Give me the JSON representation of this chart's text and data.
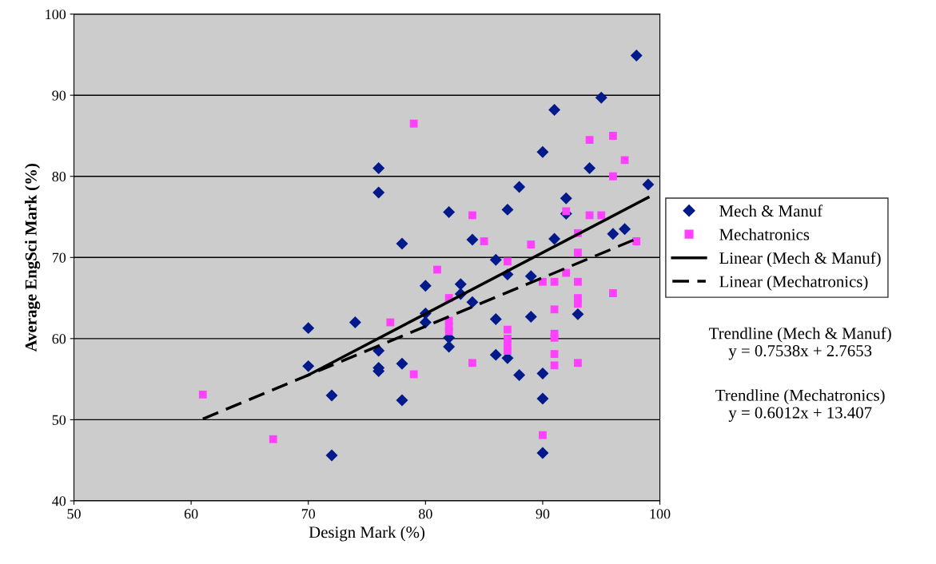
{
  "chart_data": {
    "type": "scatter",
    "xlabel": "Design Mark (%)",
    "ylabel": "Average EngSci Mark (%)",
    "xlim": [
      50,
      100
    ],
    "xticks": [
      50,
      60,
      70,
      80,
      90,
      100
    ],
    "ylim": [
      40,
      100
    ],
    "yticks": [
      40,
      50,
      60,
      70,
      80,
      90,
      100
    ],
    "grid": "y",
    "legend": "right",
    "series": [
      {
        "name": "Mech & Manuf",
        "marker": "diamond",
        "color": "#001a8c",
        "x": [
          76,
          76,
          78,
          70,
          74,
          76,
          70,
          76,
          76,
          78,
          72,
          78,
          72,
          98,
          95,
          91,
          90,
          94,
          99,
          88,
          92,
          82,
          87,
          92,
          96,
          97,
          84,
          91,
          86,
          87,
          89,
          80,
          83,
          83,
          84,
          80,
          80,
          82,
          82,
          86,
          89,
          93,
          86,
          87,
          88,
          90,
          90,
          90
        ],
        "values": [
          81,
          78,
          71.7,
          61.3,
          62,
          58.5,
          56.6,
          56.4,
          56,
          56.9,
          53,
          52.4,
          45.6,
          94.9,
          89.7,
          88.2,
          83,
          81,
          79,
          78.7,
          77.3,
          75.6,
          75.9,
          75.4,
          72.9,
          73.5,
          72.2,
          72.3,
          69.7,
          67.9,
          67.7,
          66.5,
          66.7,
          65.5,
          64.5,
          63.1,
          62,
          60.1,
          59,
          62.4,
          62.7,
          63,
          58,
          57.6,
          55.5,
          55.7,
          52.6,
          45.9
        ]
      },
      {
        "name": "Mechatronics",
        "marker": "square",
        "color": "#ff40ff",
        "x": [
          79,
          77,
          79,
          61,
          67,
          94,
          96,
          97,
          96,
          84,
          92,
          94,
          95,
          93,
          98,
          85,
          89,
          93,
          87,
          81,
          92,
          90,
          91,
          93,
          96,
          93,
          93,
          82,
          82,
          82,
          82,
          91,
          87,
          87,
          87,
          87,
          91,
          91,
          91,
          91,
          93,
          84,
          90
        ],
        "values": [
          86.5,
          62,
          55.6,
          53.1,
          47.6,
          84.5,
          85,
          82,
          80,
          75.2,
          75.7,
          75.2,
          75.2,
          73,
          72,
          72,
          71.6,
          70.6,
          69.5,
          68.5,
          68.1,
          67,
          67,
          67,
          65.6,
          65,
          64.3,
          65,
          62.2,
          61.5,
          60.9,
          63.6,
          61.1,
          60,
          59.2,
          58.5,
          60.6,
          60.1,
          58.1,
          56.7,
          57,
          57,
          48.1
        ]
      },
      {
        "name": "Linear (Mech & Manuf)",
        "type": "line",
        "line_style": "solid",
        "color": "#000000",
        "x": [
          70,
          99
        ],
        "values": [
          55.5,
          77.4
        ]
      },
      {
        "name": "Linear (Mechatronics)",
        "type": "line",
        "line_style": "dashed",
        "color": "#000000",
        "x": [
          61,
          98
        ],
        "values": [
          50.1,
          72.3
        ]
      }
    ],
    "annotations": [
      "Trendline (Mech & Manuf)\ny = 0.7538x + 2.7653",
      "Trendline (Mechatronics)\ny = 0.6012x + 13.407"
    ]
  }
}
